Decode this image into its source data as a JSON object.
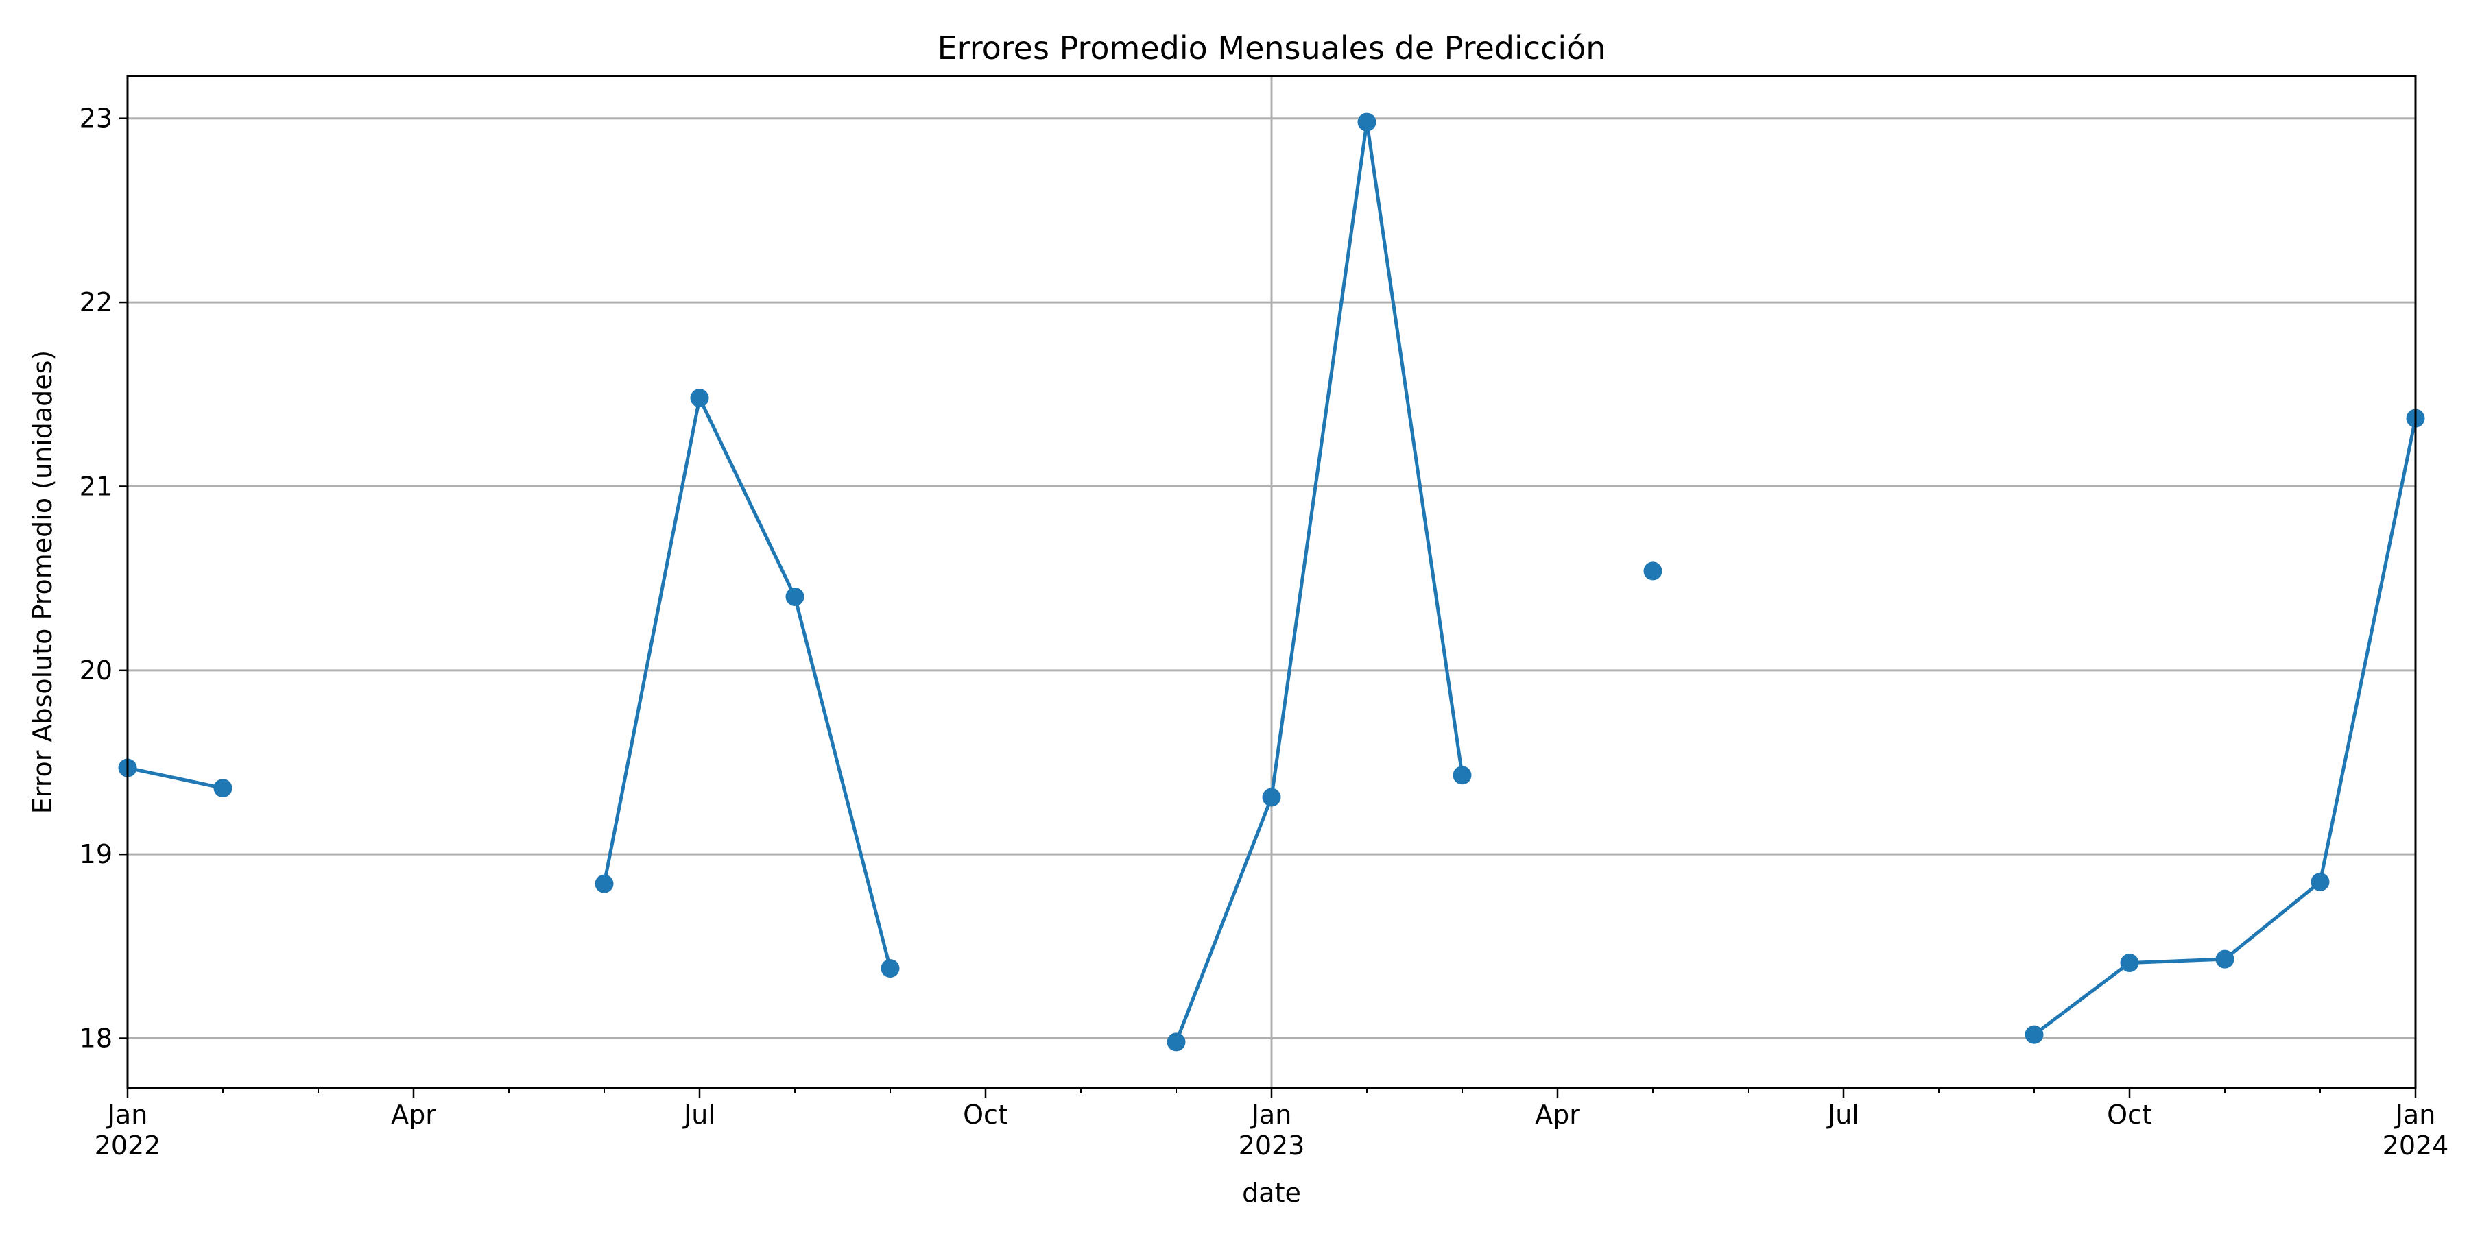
{
  "chart_data": {
    "type": "line",
    "title": "Errores Promedio Mensuales de Predicción",
    "xlabel": "date",
    "ylabel": "Error Absoluto Promedio (unidades)",
    "xlim": [
      "2022-01",
      "2024-01"
    ],
    "ylim": [
      17.73,
      23.23
    ],
    "grid": true,
    "y_ticks": [
      18,
      19,
      20,
      21,
      22,
      23
    ],
    "x_major_ticks": [
      {
        "date": "2022-01",
        "label": "Jan",
        "year": "2022"
      },
      {
        "date": "2022-04",
        "label": "Apr",
        "year": ""
      },
      {
        "date": "2022-07",
        "label": "Jul",
        "year": ""
      },
      {
        "date": "2022-10",
        "label": "Oct",
        "year": ""
      },
      {
        "date": "2023-01",
        "label": "Jan",
        "year": "2023"
      },
      {
        "date": "2023-04",
        "label": "Apr",
        "year": ""
      },
      {
        "date": "2023-07",
        "label": "Jul",
        "year": ""
      },
      {
        "date": "2023-10",
        "label": "Oct",
        "year": ""
      },
      {
        "date": "2024-01",
        "label": "Jan",
        "year": "2024"
      }
    ],
    "series": [
      {
        "color": "#1f77b4",
        "points": [
          {
            "x": "2022-01",
            "y": 19.47
          },
          {
            "x": "2022-02",
            "y": 19.36
          },
          {
            "x": "2022-03",
            "y": null
          },
          {
            "x": "2022-04",
            "y": null
          },
          {
            "x": "2022-05",
            "y": null
          },
          {
            "x": "2022-06",
            "y": 18.84
          },
          {
            "x": "2022-07",
            "y": 21.48
          },
          {
            "x": "2022-08",
            "y": 20.4
          },
          {
            "x": "2022-09",
            "y": 18.38
          },
          {
            "x": "2022-10",
            "y": null
          },
          {
            "x": "2022-11",
            "y": null
          },
          {
            "x": "2022-12",
            "y": 17.98
          },
          {
            "x": "2023-01",
            "y": 19.31
          },
          {
            "x": "2023-02",
            "y": 22.98
          },
          {
            "x": "2023-03",
            "y": 19.43
          },
          {
            "x": "2023-04",
            "y": null
          },
          {
            "x": "2023-05",
            "y": 20.54
          },
          {
            "x": "2023-06",
            "y": null
          },
          {
            "x": "2023-07",
            "y": null
          },
          {
            "x": "2023-08",
            "y": null
          },
          {
            "x": "2023-09",
            "y": 18.02
          },
          {
            "x": "2023-10",
            "y": 18.41
          },
          {
            "x": "2023-11",
            "y": 18.43
          },
          {
            "x": "2023-12",
            "y": 18.85
          },
          {
            "x": "2024-01",
            "y": 21.37
          }
        ]
      }
    ]
  }
}
